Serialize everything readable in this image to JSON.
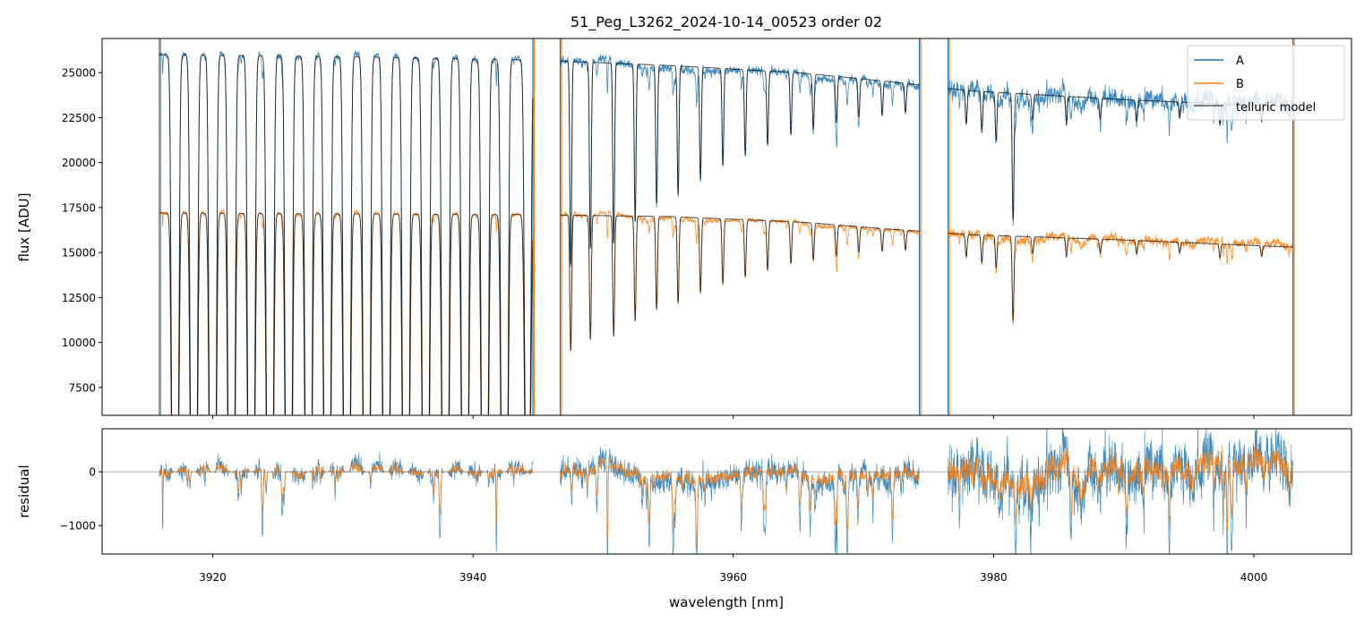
{
  "chart_data": {
    "type": "line",
    "title": "51_Peg_L3262_2024-10-14_00523  order 02",
    "xlabel": "wavelength [nm]",
    "panels": [
      {
        "name": "flux",
        "ylabel": "flux [ADU]",
        "ylim": [
          5950,
          26900
        ],
        "yticks": [
          7500,
          10000,
          12500,
          15000,
          17500,
          20000,
          22500,
          25000
        ],
        "ytick_labels": [
          "7500",
          "10000",
          "12500",
          "15000",
          "17500",
          "20000",
          "22500",
          "25000"
        ]
      },
      {
        "name": "residual",
        "ylabel": "residual",
        "ylim": [
          -1530,
          800
        ],
        "yticks": [
          -1000,
          0
        ],
        "ytick_labels": [
          "−1000",
          "0"
        ],
        "zero_line": true
      }
    ],
    "xlim": [
      3911.5,
      4007.5
    ],
    "xticks": [
      3920,
      3940,
      3960,
      3980,
      4000
    ],
    "xtick_labels": [
      "3920",
      "3940",
      "3960",
      "3980",
      "4000"
    ],
    "grid": false,
    "legend": {
      "placement": "top-right",
      "entries": [
        "A",
        "B",
        "telluric model"
      ]
    },
    "colors": {
      "A": "#1f77b4",
      "B": "#ff7f0e",
      "telluric model": "#404040"
    },
    "segments": [
      [
        3915.9,
        3944.6
      ],
      [
        3946.7,
        3974.3
      ],
      [
        3976.5,
        4003.0
      ]
    ],
    "continuum": {
      "wavelength": [
        3916,
        3930,
        3945,
        3955,
        3965,
        3972,
        3978,
        3990,
        4003
      ],
      "A": [
        26000,
        25900,
        25700,
        25400,
        25000,
        24500,
        24000,
        23500,
        23100
      ],
      "B": [
        17200,
        17150,
        17100,
        17000,
        16700,
        16300,
        16000,
        15700,
        15300
      ]
    },
    "telluric_lines": {
      "wavelength": [
        3917.11,
        3918.55,
        3920.0,
        3921.44,
        3922.96,
        3924.4,
        3925.84,
        3927.36,
        3928.8,
        3930.31,
        3931.83,
        3933.34,
        3934.85,
        3936.37,
        3937.88,
        3939.39,
        3940.91,
        3942.42,
        3944.2,
        3947.51,
        3949.02,
        3950.81,
        3952.46,
        3954.11,
        3955.76,
        3957.48,
        3959.2,
        3960.92,
        3962.64,
        3964.43,
        3966.15,
        3967.93,
        3969.65,
        3971.44,
        3973.23,
        3977.9,
        3979.1,
        3980.2,
        3981.5,
        3983.0,
        3985.6,
        3988.2,
        3991.0,
        3994.3,
        3997.4,
        4000.6
      ],
      "optical_depth": [
        9,
        9,
        9,
        9,
        9,
        9,
        9,
        9,
        9,
        9,
        9,
        9,
        9,
        9,
        9,
        9,
        9,
        9,
        4,
        0.58,
        0.52,
        0.5,
        0.42,
        0.36,
        0.33,
        0.28,
        0.24,
        0.21,
        0.18,
        0.15,
        0.13,
        0.11,
        0.09,
        0.08,
        0.07,
        0.08,
        0.1,
        0.12,
        0.35,
        0.06,
        0.07,
        0.05,
        0.05,
        0.04,
        0.05,
        0.04
      ]
    },
    "noise_rms": {
      "A": [
        150,
        200,
        450
      ],
      "B": [
        80,
        100,
        220
      ]
    }
  }
}
